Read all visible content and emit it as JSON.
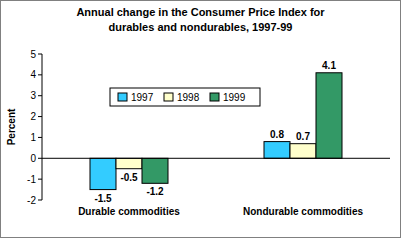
{
  "chart_data": {
    "type": "bar",
    "title": "Annual change in the Consumer Price Index for durables and nondurables, 1997-99",
    "y_label": "Percent",
    "categories": [
      "Durable commodities",
      "Nondurable commodities"
    ],
    "series": [
      {
        "name": "1997",
        "color": "#33ccff",
        "values": [
          -1.5,
          0.8
        ]
      },
      {
        "name": "1998",
        "color": "#ffffcc",
        "values": [
          -0.5,
          0.7
        ]
      },
      {
        "name": "1999",
        "color": "#339966",
        "values": [
          -1.2,
          4.1
        ]
      }
    ],
    "ylim": [
      -2,
      5
    ],
    "yticks": [
      -2,
      -1,
      0,
      1,
      2,
      3,
      4,
      5
    ],
    "grid": false,
    "legend": "upper left",
    "data_labels": true
  }
}
